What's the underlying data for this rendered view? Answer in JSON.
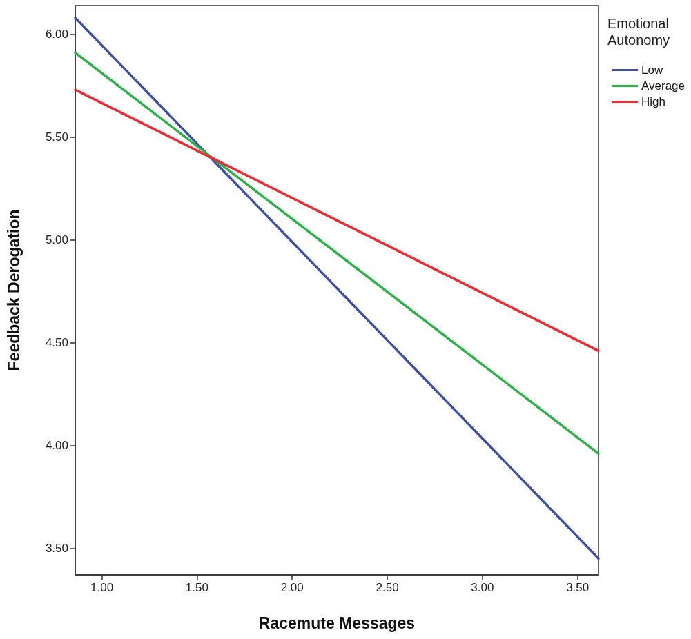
{
  "chart_data": {
    "type": "line",
    "xlabel": "Racemute Messages",
    "ylabel": "Feedback Derogation",
    "legend_title": "Emotional Autonomy",
    "legend": "top right",
    "grid": false,
    "marker": "none",
    "line_style": "solid",
    "xlim": [
      0.86,
      3.61
    ],
    "ylim": [
      3.37,
      6.14
    ],
    "xticks": [
      {
        "value": 1,
        "label": "1.00"
      },
      {
        "value": 1.5,
        "label": "1.50"
      },
      {
        "value": 2,
        "label": "2.00"
      },
      {
        "value": 2.5,
        "label": "2.50"
      },
      {
        "value": 3,
        "label": "3.00"
      },
      {
        "value": 3.5,
        "label": "3.50"
      }
    ],
    "yticks": [
      {
        "value": 3.5,
        "label": "3.50"
      },
      {
        "value": 4,
        "label": "4.00"
      },
      {
        "value": 4.5,
        "label": "4.50"
      },
      {
        "value": 5,
        "label": "5.00"
      },
      {
        "value": 5.5,
        "label": "5.50"
      },
      {
        "value": 6,
        "label": "6.00"
      }
    ],
    "x": [
      0.86,
      3.61
    ],
    "series": [
      {
        "name": "Low",
        "color": "#3e4fa8",
        "values": [
          6.08,
          3.45
        ]
      },
      {
        "name": "Average",
        "color": "#2db24a",
        "values": [
          5.91,
          3.96
        ]
      },
      {
        "name": "High",
        "color": "#ee2b33",
        "values": [
          5.73,
          4.46
        ]
      }
    ]
  }
}
